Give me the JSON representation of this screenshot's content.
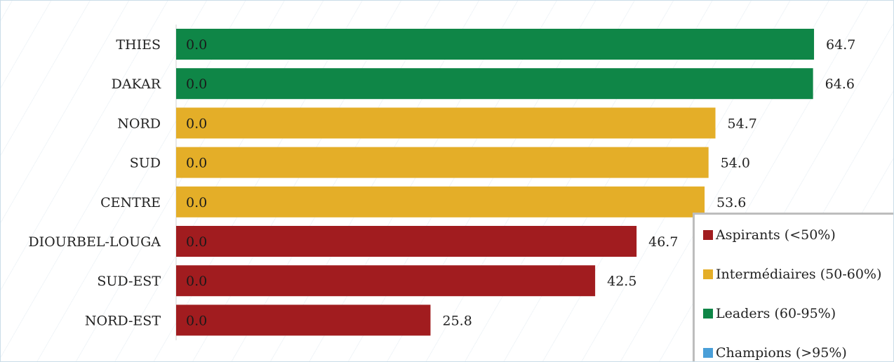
{
  "chart_data": {
    "type": "bar",
    "orientation": "horizontal",
    "categories": [
      "THIES",
      "DAKAR",
      "NORD",
      "SUD",
      "CENTRE",
      "DIOURBEL-LOUGA",
      "SUD-EST",
      "NORD-EST"
    ],
    "values": [
      64.7,
      64.6,
      54.7,
      54.0,
      53.6,
      46.7,
      42.5,
      25.8
    ],
    "value_labels": [
      "64.7",
      "64.6",
      "54.7",
      "54.0",
      "53.6",
      "46.7",
      "42.5",
      "25.8"
    ],
    "inner_labels": [
      "0.0",
      "0.0",
      "0.0",
      "0.0",
      "0.0",
      "0.0",
      "0.0",
      "0.0"
    ],
    "groups": [
      "leaders",
      "leaders",
      "intermediaires",
      "intermediaires",
      "intermediaires",
      "aspirants",
      "aspirants",
      "aspirants"
    ],
    "xlim": [
      0,
      80
    ],
    "grid": false,
    "legend_position": "bottom-right",
    "legend": [
      {
        "key": "aspirants",
        "label": "Aspirants (<50%)",
        "color": "#a11c1f"
      },
      {
        "key": "intermediaires",
        "label": "Intermédiaires (50-60%)",
        "color": "#e4ae28"
      },
      {
        "key": "leaders",
        "label": "Leaders (60-95%)",
        "color": "#0f8647"
      },
      {
        "key": "champions",
        "label": "Champions (>95%)",
        "color": "#4a9fd8"
      }
    ]
  }
}
